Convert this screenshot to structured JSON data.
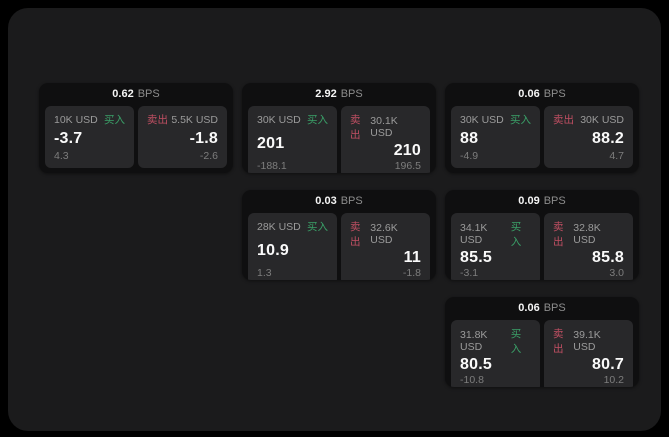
{
  "labels": {
    "bps_unit": "BPS",
    "buy": "买入",
    "sell": "卖出"
  },
  "colors": {
    "buy_accent": "#3aa068",
    "sell_accent": "#c04f63",
    "surface": "#1b1b1c",
    "card_background": "#0f0f10",
    "panel_background": "#28282a"
  },
  "cards": [
    {
      "bps": "0.62",
      "buy": {
        "amount": "10K USD",
        "price": "-3.7",
        "secondary": "4.3"
      },
      "sell": {
        "amount": "5.5K USD",
        "price": "-1.8",
        "secondary": "-2.6"
      }
    },
    {
      "bps": "2.92",
      "buy": {
        "amount": "30K USD",
        "price": "201",
        "secondary": "-188.1"
      },
      "sell": {
        "amount": "30.1K USD",
        "price": "210",
        "secondary": "196.5"
      }
    },
    {
      "bps": "0.06",
      "buy": {
        "amount": "30K USD",
        "price": "88",
        "secondary": "-4.9"
      },
      "sell": {
        "amount": "30K USD",
        "price": "88.2",
        "secondary": "4.7"
      }
    },
    {
      "bps": "0.03",
      "buy": {
        "amount": "28K USD",
        "price": "10.9",
        "secondary": "1.3"
      },
      "sell": {
        "amount": "32.6K USD",
        "price": "11",
        "secondary": "-1.8"
      }
    },
    {
      "bps": "0.09",
      "buy": {
        "amount": "34.1K USD",
        "price": "85.5",
        "secondary": "-3.1"
      },
      "sell": {
        "amount": "32.8K USD",
        "price": "85.8",
        "secondary": "3.0"
      }
    },
    {
      "bps": "0.06",
      "buy": {
        "amount": "31.8K USD",
        "price": "80.5",
        "secondary": "-10.8"
      },
      "sell": {
        "amount": "39.1K USD",
        "price": "80.7",
        "secondary": "10.2"
      }
    }
  ]
}
